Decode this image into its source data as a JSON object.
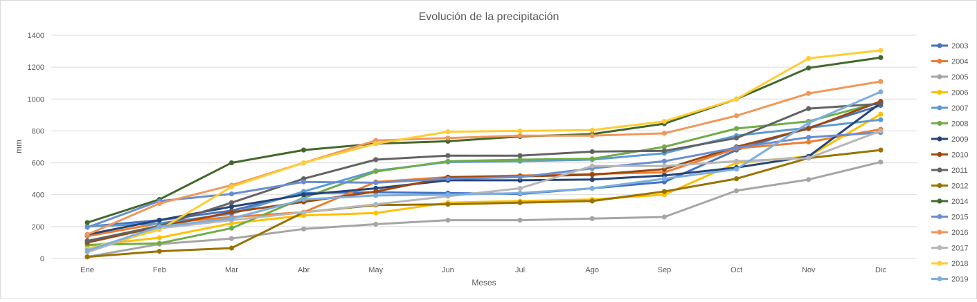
{
  "chart_data": {
    "type": "line",
    "title": "Evolución de la precipitación",
    "xlabel": "Meses",
    "ylabel": "mm",
    "ylim": [
      0,
      1400
    ],
    "yticks": [
      0,
      200,
      400,
      600,
      800,
      1000,
      1200,
      1400
    ],
    "grid": true,
    "legend_position": "right",
    "categories": [
      "Ene",
      "Feb",
      "Mar",
      "Abr",
      "May",
      "Jun",
      "Jul",
      "Ago",
      "Sep",
      "Oct",
      "Nov",
      "Dic"
    ],
    "series": [
      {
        "name": "2003",
        "color": "#4472C4",
        "values": [
          200,
          240,
          300,
          410,
          415,
          410,
          405,
          440,
          480,
          680,
          820,
          960
        ]
      },
      {
        "name": "2004",
        "color": "#ED7D31",
        "values": [
          140,
          220,
          260,
          290,
          480,
          510,
          520,
          530,
          540,
          690,
          730,
          810
        ]
      },
      {
        "name": "2005",
        "color": "#A5A5A5",
        "values": [
          10,
          90,
          125,
          185,
          215,
          240,
          240,
          250,
          260,
          425,
          495,
          605
        ]
      },
      {
        "name": "2006",
        "color": "#FFC000",
        "values": [
          80,
          130,
          220,
          270,
          285,
          350,
          360,
          370,
          400,
          600,
          640,
          905
        ]
      },
      {
        "name": "2007",
        "color": "#5B9BD5",
        "values": [
          200,
          220,
          280,
          420,
          550,
          605,
          610,
          620,
          660,
          770,
          820,
          870
        ]
      },
      {
        "name": "2008",
        "color": "#70AD47",
        "values": [
          85,
          95,
          190,
          380,
          545,
          610,
          620,
          625,
          700,
          815,
          860,
          980
        ]
      },
      {
        "name": "2009",
        "color": "#264478",
        "values": [
          150,
          240,
          325,
          400,
          440,
          490,
          490,
          495,
          520,
          570,
          640,
          975
        ]
      },
      {
        "name": "2010",
        "color": "#9E480E",
        "values": [
          100,
          200,
          290,
          355,
          420,
          510,
          515,
          525,
          560,
          700,
          815,
          985
        ]
      },
      {
        "name": "2011",
        "color": "#636363",
        "values": [
          110,
          205,
          350,
          500,
          620,
          645,
          645,
          670,
          675,
          755,
          940,
          970
        ]
      },
      {
        "name": "2012",
        "color": "#997300",
        "values": [
          10,
          45,
          65,
          290,
          335,
          340,
          350,
          360,
          420,
          500,
          630,
          680
        ]
      },
      {
        "name": "2014",
        "color": "#43682B",
        "values": [
          225,
          370,
          600,
          680,
          720,
          735,
          765,
          780,
          845,
          1000,
          1195,
          1260
        ]
      },
      {
        "name": "2015",
        "color": "#698ED0",
        "values": [
          195,
          360,
          405,
          480,
          475,
          500,
          510,
          565,
          610,
          695,
          760,
          790
        ]
      },
      {
        "name": "2016",
        "color": "#F1975A",
        "values": [
          150,
          345,
          460,
          600,
          740,
          755,
          770,
          770,
          785,
          895,
          1035,
          1110
        ]
      },
      {
        "name": "2017",
        "color": "#B7B7B7",
        "values": [
          40,
          190,
          240,
          290,
          340,
          390,
          440,
          580,
          580,
          610,
          630,
          800
        ]
      },
      {
        "name": "2018",
        "color": "#FFCD33",
        "values": [
          60,
          180,
          450,
          600,
          720,
          795,
          800,
          805,
          860,
          1000,
          1255,
          1305
        ]
      },
      {
        "name": "2019",
        "color": "#7CAFDD",
        "values": [
          50,
          200,
          250,
          370,
          395,
          400,
          410,
          440,
          500,
          560,
          850,
          1045
        ]
      }
    ]
  }
}
